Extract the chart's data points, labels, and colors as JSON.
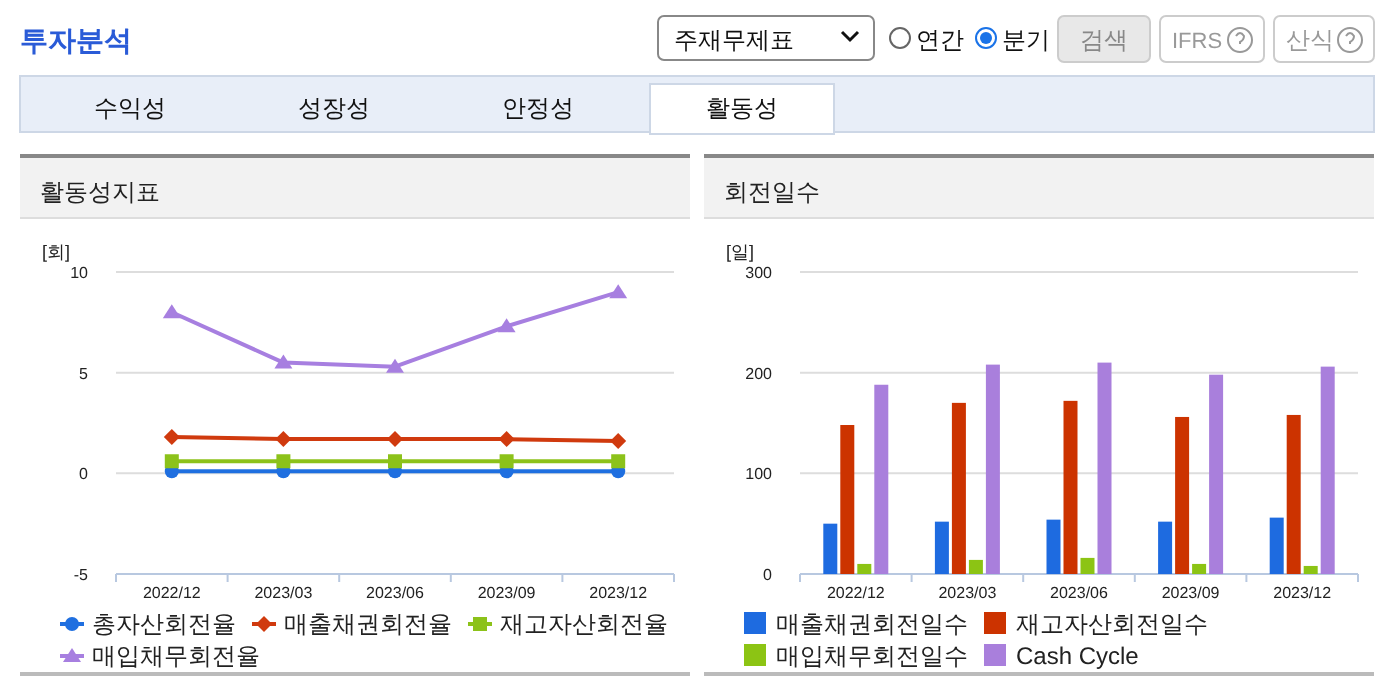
{
  "chart_data": [
    {
      "type": "other",
      "title": "투자분석",
      "annotations": [
        "주재무제표",
        "연간",
        "분기",
        "검색",
        "IFRS",
        "산식",
        "수익성",
        "성장성",
        "안정성",
        "활동성"
      ]
    },
    {
      "type": "line",
      "title": "활동성지표",
      "ylabel": "[회]",
      "categories": [
        "2022/12",
        "2023/03",
        "2023/06",
        "2023/09",
        "2023/12"
      ],
      "ylim": [
        -5,
        10
      ],
      "yticks": [
        -5,
        0,
        5,
        10
      ],
      "grid": "y",
      "legend": "bottom",
      "series": [
        {
          "name": "총자산회전율",
          "color": "#1f6fe0",
          "marker": "circle",
          "values": [
            0.1,
            0.1,
            0.1,
            0.1,
            0.1
          ]
        },
        {
          "name": "매출채권회전율",
          "color": "#d03a0e",
          "marker": "diamond",
          "values": [
            1.8,
            1.7,
            1.7,
            1.7,
            1.6
          ]
        },
        {
          "name": "재고자산회전율",
          "color": "#8cc21a",
          "marker": "square",
          "values": [
            0.6,
            0.6,
            0.6,
            0.6,
            0.6
          ]
        },
        {
          "name": "매입채무회전율",
          "color": "#a77fe0",
          "marker": "triangle",
          "values": [
            8.0,
            5.5,
            5.3,
            7.3,
            9.0
          ]
        }
      ]
    },
    {
      "type": "bar",
      "title": "회전일수",
      "ylabel": "[일]",
      "categories": [
        "2022/12",
        "2023/03",
        "2023/06",
        "2023/09",
        "2023/12"
      ],
      "ylim": [
        0,
        300
      ],
      "yticks": [
        0,
        100,
        200,
        300
      ],
      "grid": "y",
      "legend": "bottom",
      "series": [
        {
          "name": "매출채권회전일수",
          "color": "#1e6be0",
          "values": [
            50,
            52,
            54,
            52,
            56
          ]
        },
        {
          "name": "재고자산회전일수",
          "color": "#cc3300",
          "values": [
            148,
            170,
            172,
            156,
            158
          ]
        },
        {
          "name": "매입채무회전일수",
          "color": "#8cc414",
          "values": [
            10,
            14,
            16,
            10,
            8
          ]
        },
        {
          "name": "Cash Cycle",
          "color": "#a97fdc",
          "values": [
            188,
            208,
            210,
            198,
            206
          ]
        }
      ]
    }
  ]
}
